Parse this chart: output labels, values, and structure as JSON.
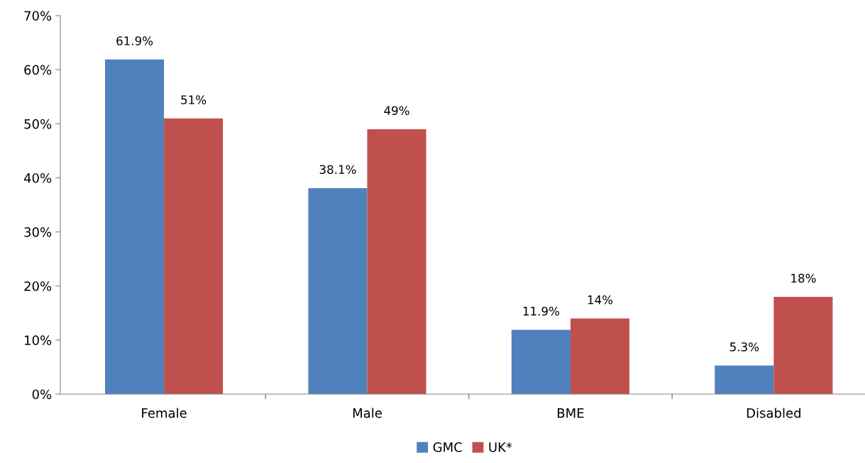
{
  "chart_data": {
    "type": "bar",
    "categories": [
      "Female",
      "Male",
      "BME",
      "Disabled"
    ],
    "series": [
      {
        "name": "GMC",
        "color": "#4f81bd",
        "values": [
          61.9,
          38.1,
          11.9,
          5.3
        ],
        "value_labels": [
          "61.9%",
          "38.1%",
          "11.9%",
          "5.3%"
        ]
      },
      {
        "name": "UK*",
        "color": "#c0504d",
        "values": [
          51,
          49,
          14,
          18
        ],
        "value_labels": [
          "51%",
          "49%",
          "14%",
          "18%"
        ]
      }
    ],
    "ylim": [
      0,
      70
    ],
    "yticks": [
      {
        "value": 0,
        "label": "0%"
      },
      {
        "value": 10,
        "label": "10%"
      },
      {
        "value": 20,
        "label": "20%"
      },
      {
        "value": 30,
        "label": "30%"
      },
      {
        "value": 40,
        "label": "40%"
      },
      {
        "value": 50,
        "label": "50%"
      },
      {
        "value": 60,
        "label": "60%"
      },
      {
        "value": 70,
        "label": "70%"
      }
    ],
    "grid": false,
    "legend": "bottom"
  }
}
